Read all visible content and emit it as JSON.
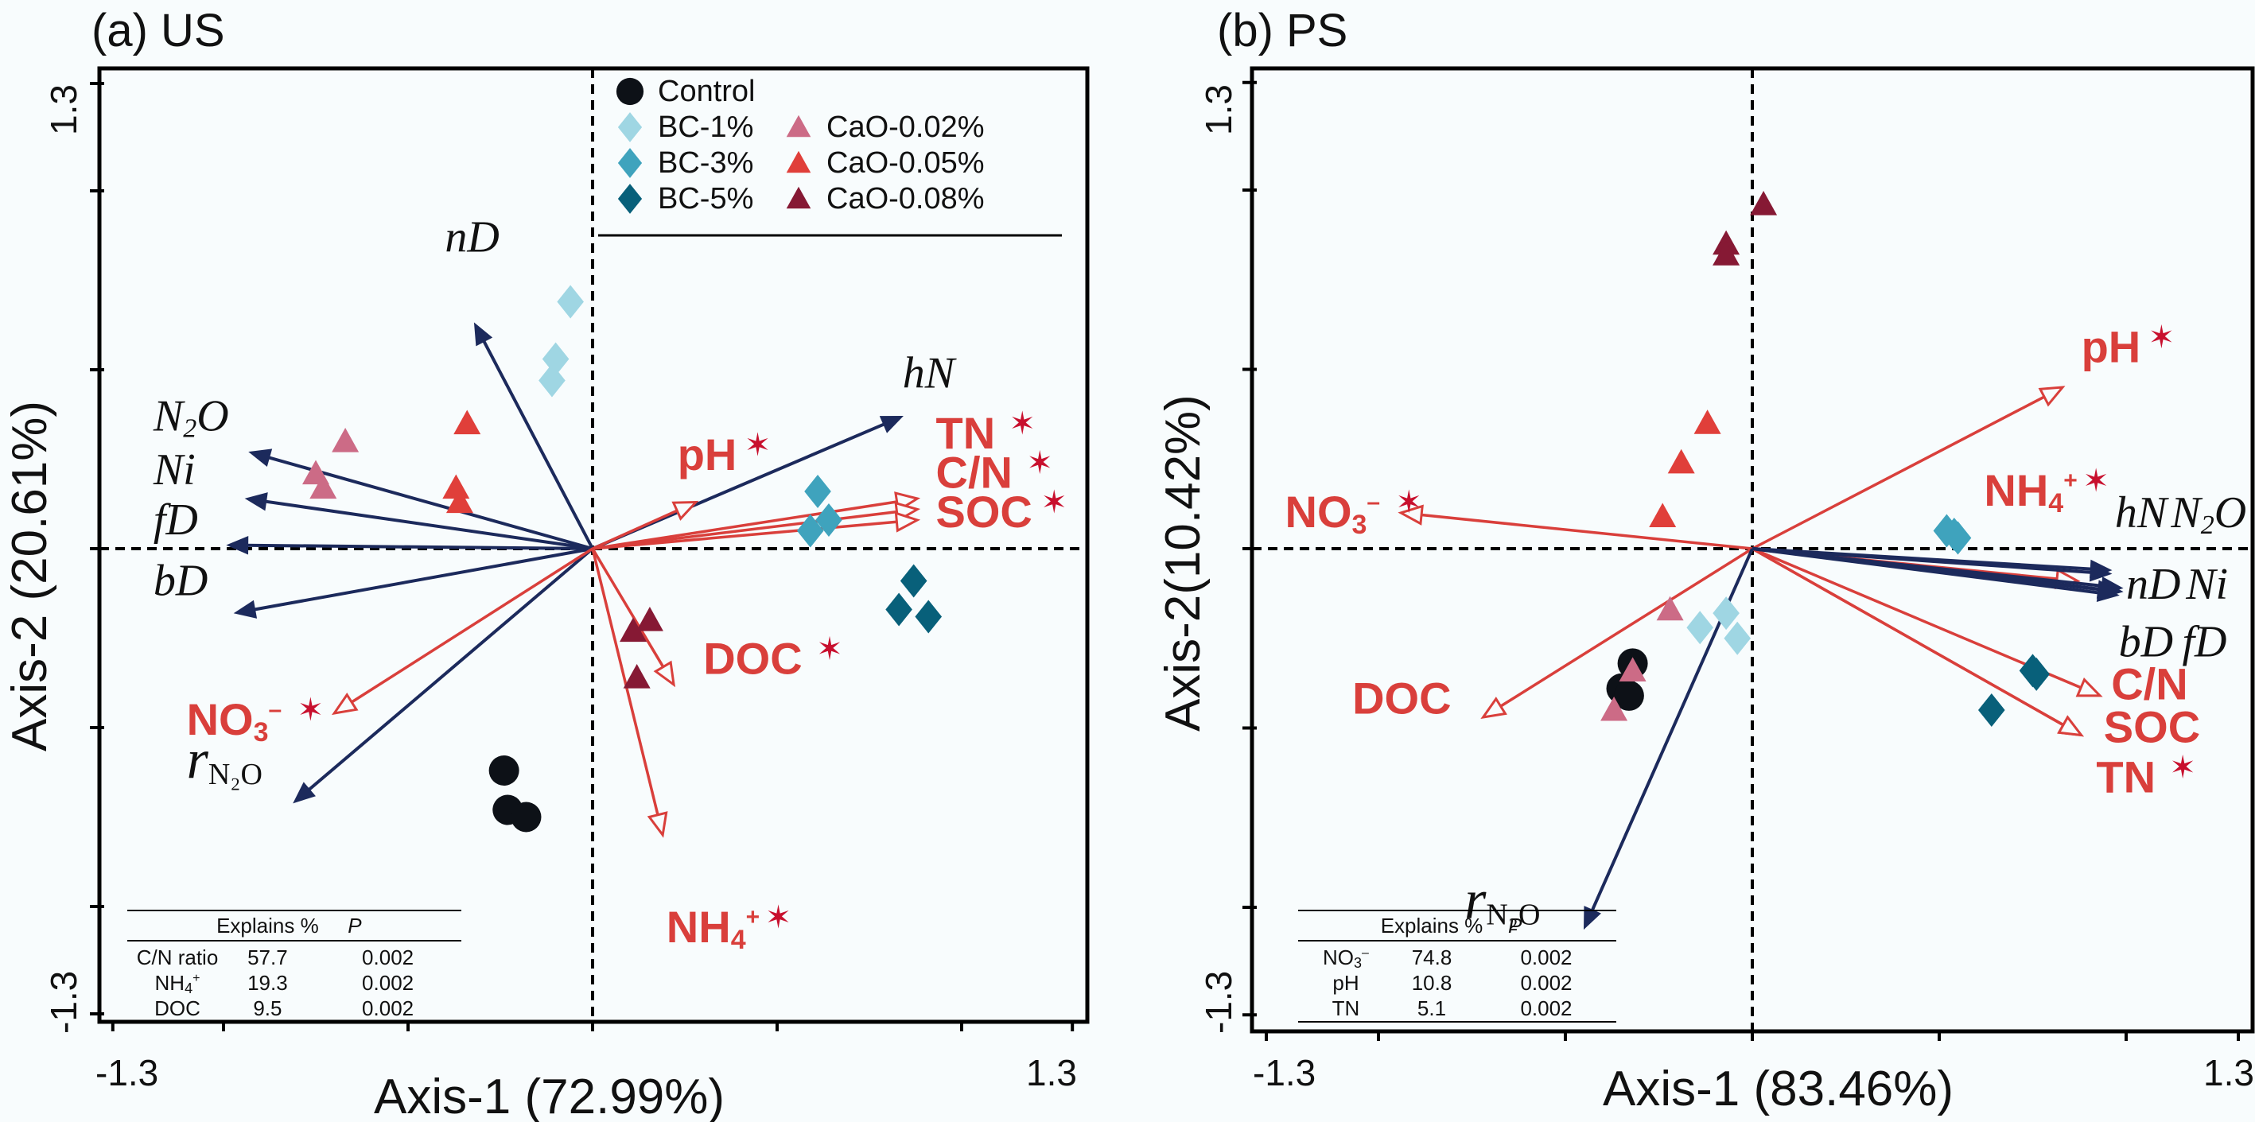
{
  "chart_data": [
    {
      "type": "scatter",
      "title": "(a) US",
      "xlabel": "Axis-1 (72.99%)",
      "ylabel": "Axis-2 (20.61%)",
      "xlim": [
        -1.3,
        1.3
      ],
      "ylim": [
        -1.3,
        1.3
      ],
      "x_tick_labels": [
        "-1.3",
        "1.3"
      ],
      "y_tick_labels": [
        "1.3",
        "-1.3"
      ],
      "x_ticks": [
        -1.3,
        -1.0,
        -0.5,
        0,
        0.5,
        1.0,
        1.3
      ],
      "y_ticks": [
        -1.3,
        -1.0,
        -0.5,
        0,
        0.5,
        1.0,
        1.3
      ],
      "legend_position": "top-center",
      "series": [
        {
          "name": "Control",
          "marker": "circle",
          "color": "#0d1117",
          "points": [
            [
              -0.24,
              -0.62
            ],
            [
              -0.23,
              -0.73
            ],
            [
              -0.18,
              -0.75
            ]
          ]
        },
        {
          "name": "BC-1%",
          "marker": "diamond",
          "color": "#9fd6e3",
          "points": [
            [
              -0.06,
              0.69
            ],
            [
              -0.1,
              0.53
            ],
            [
              -0.11,
              0.47
            ]
          ]
        },
        {
          "name": "BC-3%",
          "marker": "diamond",
          "color": "#3fa3bd",
          "points": [
            [
              0.61,
              0.16
            ],
            [
              0.64,
              0.08
            ],
            [
              0.59,
              0.05
            ]
          ]
        },
        {
          "name": "BC-5%",
          "marker": "diamond",
          "color": "#08607a",
          "points": [
            [
              0.87,
              -0.09
            ],
            [
              0.83,
              -0.17
            ],
            [
              0.91,
              -0.19
            ]
          ]
        },
        {
          "name": "CaO-0.02%",
          "marker": "triangle",
          "color": "#cc6b86",
          "points": [
            [
              -0.67,
              0.3
            ],
            [
              -0.75,
              0.21
            ],
            [
              -0.73,
              0.17
            ]
          ]
        },
        {
          "name": "CaO-0.05%",
          "marker": "triangle",
          "color": "#e03f3a",
          "points": [
            [
              -0.34,
              0.35
            ],
            [
              -0.37,
              0.17
            ],
            [
              -0.36,
              0.13
            ]
          ]
        },
        {
          "name": "CaO-0.08%",
          "marker": "triangle",
          "color": "#861934",
          "points": [
            [
              0.155,
              -0.2
            ],
            [
              0.11,
              -0.23
            ],
            [
              0.12,
              -0.36
            ]
          ]
        }
      ],
      "vectors": [
        {
          "name": "nD",
          "kind": "response",
          "x": -0.32,
          "y": 0.63,
          "label_xy": [
            -0.4,
            0.83
          ]
        },
        {
          "name": "N2O",
          "kind": "response",
          "x": -0.93,
          "y": 0.27,
          "label_xy": [
            -1.19,
            0.33
          ]
        },
        {
          "name": "Ni",
          "kind": "response",
          "x": -0.94,
          "y": 0.14,
          "label_xy": [
            -1.19,
            0.18
          ]
        },
        {
          "name": "fD",
          "kind": "response",
          "x": -0.99,
          "y": 0.01,
          "label_xy": [
            -1.19,
            0.04
          ]
        },
        {
          "name": "bD",
          "kind": "response",
          "x": -0.97,
          "y": -0.18,
          "label_xy": [
            -1.19,
            -0.13
          ]
        },
        {
          "name": "rN2O",
          "kind": "response",
          "x": -0.81,
          "y": -0.71,
          "label_xy": [
            -1.1,
            -0.64
          ]
        },
        {
          "name": "hN",
          "kind": "response",
          "x": 0.84,
          "y": 0.37,
          "label_xy": [
            0.84,
            0.45
          ]
        },
        {
          "name": "pH",
          "kind": "environment",
          "x": 0.28,
          "y": 0.13,
          "label_xy": [
            0.23,
            0.22
          ],
          "significant": true
        },
        {
          "name": "TN",
          "kind": "environment",
          "x": 0.88,
          "y": 0.14,
          "label_xy": [
            0.93,
            0.28
          ],
          "significant": true
        },
        {
          "name": "C/N",
          "kind": "environment",
          "x": 0.88,
          "y": 0.11,
          "label_xy": [
            0.93,
            0.17
          ],
          "significant": true
        },
        {
          "name": "SOC",
          "kind": "environment",
          "x": 0.88,
          "y": 0.08,
          "label_xy": [
            0.93,
            0.06
          ],
          "significant": true
        },
        {
          "name": "DOC",
          "kind": "environment",
          "x": 0.22,
          "y": -0.38,
          "label_xy": [
            0.3,
            -0.35
          ],
          "significant": true
        },
        {
          "name": "NH4+",
          "kind": "environment",
          "x": 0.19,
          "y": -0.8,
          "label_xy": [
            0.2,
            -1.1
          ],
          "significant": true
        },
        {
          "name": "NO3-",
          "kind": "environment",
          "x": -0.7,
          "y": -0.46,
          "label_xy": [
            -1.1,
            -0.52
          ],
          "significant": true
        }
      ],
      "table": {
        "headers": [
          "",
          "Explains %",
          "P"
        ],
        "rows": [
          [
            "C/N ratio",
            "57.7",
            "0.002"
          ],
          [
            "NH4+",
            "19.3",
            "0.002"
          ],
          [
            "DOC",
            "9.5",
            "0.002"
          ]
        ]
      }
    },
    {
      "type": "scatter",
      "title": "(b) PS",
      "xlabel": "Axis-1 (83.46%)",
      "ylabel": "Axis-2(10.42%)",
      "xlim": [
        -1.3,
        1.3
      ],
      "ylim": [
        -1.3,
        1.3
      ],
      "x_tick_labels": [
        "-1.3",
        "1.3"
      ],
      "y_tick_labels": [
        "1.3",
        "-1.3"
      ],
      "x_ticks": [
        -1.3,
        -1.0,
        -0.5,
        0,
        0.5,
        1.0,
        1.3
      ],
      "y_ticks": [
        -1.3,
        -1.0,
        -0.5,
        0,
        0.5,
        1.0,
        1.3
      ],
      "series": [
        {
          "name": "Control",
          "marker": "circle",
          "color": "#0d1117",
          "points": [
            [
              -0.32,
              -0.32
            ],
            [
              -0.35,
              -0.39
            ],
            [
              -0.33,
              -0.41
            ]
          ]
        },
        {
          "name": "BC-1%",
          "marker": "diamond",
          "color": "#9fd6e3",
          "points": [
            [
              -0.14,
              -0.22
            ],
            [
              -0.07,
              -0.18
            ],
            [
              -0.04,
              -0.25
            ]
          ]
        },
        {
          "name": "BC-3%",
          "marker": "diamond",
          "color": "#3fa3bd",
          "points": [
            [
              0.52,
              0.05
            ],
            [
              0.55,
              0.03
            ],
            [
              0.54,
              0.04
            ]
          ]
        },
        {
          "name": "BC-5%",
          "marker": "diamond",
          "color": "#08607a",
          "points": [
            [
              0.75,
              -0.34
            ],
            [
              0.76,
              -0.35
            ],
            [
              0.64,
              -0.45
            ]
          ]
        },
        {
          "name": "CaO-0.02%",
          "marker": "triangle",
          "color": "#cc6b86",
          "points": [
            [
              -0.22,
              -0.17
            ],
            [
              -0.32,
              -0.34
            ],
            [
              -0.37,
              -0.45
            ]
          ]
        },
        {
          "name": "CaO-0.05%",
          "marker": "triangle",
          "color": "#e03f3a",
          "points": [
            [
              -0.24,
              0.09
            ],
            [
              -0.19,
              0.24
            ],
            [
              -0.12,
              0.35
            ]
          ]
        },
        {
          "name": "CaO-0.08%",
          "marker": "triangle",
          "color": "#861934",
          "points": [
            [
              0.03,
              0.96
            ],
            [
              -0.07,
              0.85
            ],
            [
              -0.07,
              0.82
            ]
          ]
        }
      ],
      "vectors": [
        {
          "name": "pH",
          "kind": "environment",
          "x": 0.83,
          "y": 0.45,
          "label_xy": [
            0.88,
            0.52
          ],
          "significant": true
        },
        {
          "name": "NH4+",
          "kind": "environment",
          "x": 0.87,
          "y": -0.09,
          "label_xy": [
            0.62,
            0.12
          ],
          "significant": true
        },
        {
          "name": "C/N",
          "kind": "environment",
          "x": 0.93,
          "y": -0.41,
          "label_xy": [
            0.96,
            -0.42
          ]
        },
        {
          "name": "SOC",
          "kind": "environment",
          "x": 0.88,
          "y": -0.52,
          "label_xy": [
            0.94,
            -0.54
          ]
        },
        {
          "name": "TN",
          "kind": "environment",
          "x": 0.88,
          "y": -0.52,
          "label_xy": [
            0.92,
            -0.68
          ],
          "significant": true
        },
        {
          "name": "NO3-",
          "kind": "environment",
          "x": -0.94,
          "y": 0.1,
          "label_xy": [
            -1.25,
            0.06
          ],
          "significant": true
        },
        {
          "name": "DOC",
          "kind": "environment",
          "x": -0.72,
          "y": -0.47,
          "label_xy": [
            -1.07,
            -0.46
          ]
        },
        {
          "name": "hN",
          "kind": "response",
          "x": 0.96,
          "y": -0.07,
          "label_xy": [
            0.97,
            0.06
          ]
        },
        {
          "name": "N2O",
          "kind": "response",
          "x": 0.96,
          "y": -0.06,
          "label_xy": [
            1.12,
            0.06
          ]
        },
        {
          "name": "nD",
          "kind": "response",
          "x": 0.99,
          "y": -0.12,
          "label_xy": [
            1.0,
            -0.14
          ]
        },
        {
          "name": "Ni",
          "kind": "response",
          "x": 0.99,
          "y": -0.11,
          "label_xy": [
            1.16,
            -0.14
          ]
        },
        {
          "name": "bD",
          "kind": "response",
          "x": 0.98,
          "y": -0.13,
          "label_xy": [
            0.98,
            -0.3
          ]
        },
        {
          "name": "fD",
          "kind": "response",
          "x": 0.98,
          "y": -0.12,
          "label_xy": [
            1.15,
            -0.3
          ]
        },
        {
          "name": "rN2O",
          "kind": "response",
          "x": -0.45,
          "y": -1.06,
          "label_xy": [
            -0.77,
            -1.03
          ]
        }
      ],
      "table": {
        "headers": [
          "",
          "Explains %",
          "P"
        ],
        "rows": [
          [
            "NO3-",
            "74.8",
            "0.002"
          ],
          [
            "pH",
            "10.8",
            "0.002"
          ],
          [
            "TN",
            "5.1",
            "0.002"
          ]
        ]
      }
    }
  ],
  "legend": {
    "items": [
      {
        "label": "Control",
        "marker": "circle",
        "color": "#0d1117"
      },
      {
        "label": "BC-1%",
        "marker": "diamond",
        "color": "#9fd6e3"
      },
      {
        "label": "BC-3%",
        "marker": "diamond",
        "color": "#3fa3bd"
      },
      {
        "label": "BC-5%",
        "marker": "diamond",
        "color": "#08607a"
      },
      {
        "label": "CaO-0.02%",
        "marker": "triangle",
        "color": "#cc6b86"
      },
      {
        "label": "CaO-0.05%",
        "marker": "triangle",
        "color": "#e03f3a"
      },
      {
        "label": "CaO-0.08%",
        "marker": "triangle",
        "color": "#861934"
      }
    ]
  },
  "colors": {
    "response_vector": "#1c2a5c",
    "environment_vector": "#d93f3b",
    "significance_star": "#c8102e"
  },
  "significance_mark": "*"
}
